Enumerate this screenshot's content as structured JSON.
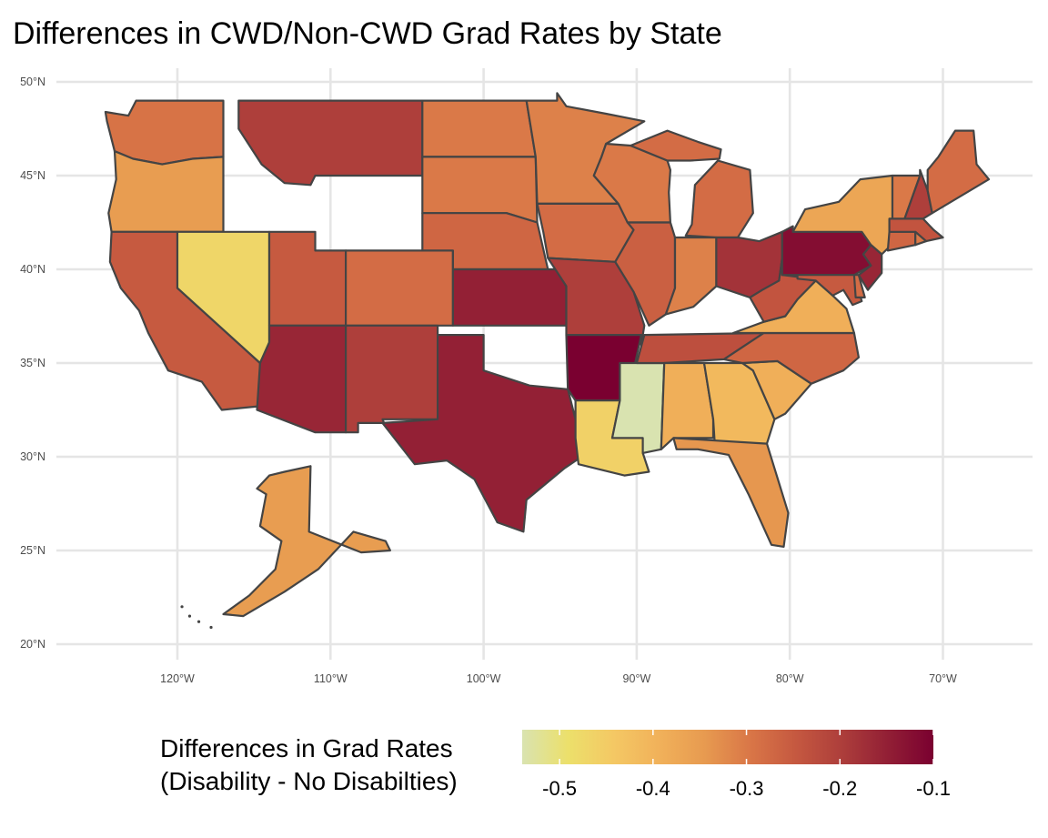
{
  "title": "Differences in CWD/Non-CWD Grad Rates by State",
  "map": {
    "lat_ticks": [
      "20°N",
      "25°N",
      "30°N",
      "35°N",
      "40°N",
      "45°N",
      "50°N"
    ],
    "lon_ticks": [
      "120°W",
      "110°W",
      "100°W",
      "90°W",
      "80°W",
      "70°W"
    ],
    "grid": true,
    "projection": "lon-lat",
    "outline_color": "#444444",
    "missing_states": [
      "Idaho",
      "Wyoming",
      "Oklahoma",
      "Kentucky"
    ]
  },
  "legend": {
    "title_line1": "Differences in Grad Rates",
    "title_line2": "(Disability - No Disabilties)",
    "ticks": [
      "-0.5",
      "-0.4",
      "-0.3",
      "-0.2",
      "-0.1"
    ],
    "tick_values": [
      -0.5,
      -0.4,
      -0.3,
      -0.2,
      -0.1
    ],
    "range": [
      -0.54,
      -0.1
    ],
    "colors": [
      "#d9e3b0",
      "#ece06b",
      "#f4c864",
      "#f1b15a",
      "#e79a50",
      "#d97647",
      "#c55840",
      "#ad3e3b",
      "#921f35",
      "#7a0030"
    ],
    "position": "bottom"
  },
  "states": [
    {
      "name": "Washington",
      "value": -0.29
    },
    {
      "name": "Oregon",
      "value": -0.35
    },
    {
      "name": "California",
      "value": -0.25
    },
    {
      "name": "Nevada",
      "value": -0.47
    },
    {
      "name": "Montana",
      "value": -0.2
    },
    {
      "name": "Utah",
      "value": -0.25
    },
    {
      "name": "Arizona",
      "value": -0.16
    },
    {
      "name": "Colorado",
      "value": -0.28
    },
    {
      "name": "New Mexico",
      "value": -0.2
    },
    {
      "name": "North Dakota",
      "value": -0.3
    },
    {
      "name": "South Dakota",
      "value": -0.3
    },
    {
      "name": "Nebraska",
      "value": -0.27
    },
    {
      "name": "Kansas",
      "value": -0.15
    },
    {
      "name": "Texas",
      "value": -0.15
    },
    {
      "name": "Minnesota",
      "value": -0.31
    },
    {
      "name": "Iowa",
      "value": -0.28
    },
    {
      "name": "Missouri",
      "value": -0.2
    },
    {
      "name": "Arkansas",
      "value": -0.1
    },
    {
      "name": "Louisiana",
      "value": -0.46
    },
    {
      "name": "Wisconsin",
      "value": -0.3
    },
    {
      "name": "Illinois",
      "value": -0.26
    },
    {
      "name": "Michigan",
      "value": -0.28
    },
    {
      "name": "Indiana",
      "value": -0.31
    },
    {
      "name": "Ohio",
      "value": -0.18
    },
    {
      "name": "Tennessee",
      "value": -0.23
    },
    {
      "name": "Mississippi",
      "value": -0.54
    },
    {
      "name": "Alabama",
      "value": -0.39
    },
    {
      "name": "Georgia",
      "value": -0.41
    },
    {
      "name": "Florida",
      "value": -0.34
    },
    {
      "name": "South Carolina",
      "value": -0.39
    },
    {
      "name": "North Carolina",
      "value": -0.27
    },
    {
      "name": "Virginia",
      "value": -0.39
    },
    {
      "name": "West Virginia",
      "value": -0.24
    },
    {
      "name": "Pennsylvania",
      "value": -0.12
    },
    {
      "name": "New York",
      "value": -0.37
    },
    {
      "name": "New Jersey",
      "value": -0.16
    },
    {
      "name": "Maryland",
      "value": -0.25
    },
    {
      "name": "Delaware",
      "value": -0.28
    },
    {
      "name": "Connecticut",
      "value": -0.27
    },
    {
      "name": "Massachusetts",
      "value": -0.24
    },
    {
      "name": "Rhode Island",
      "value": -0.3
    },
    {
      "name": "Vermont",
      "value": -0.3
    },
    {
      "name": "New Hampshire",
      "value": -0.2
    },
    {
      "name": "Maine",
      "value": -0.28
    },
    {
      "name": "Alaska",
      "value": -0.35
    }
  ]
}
